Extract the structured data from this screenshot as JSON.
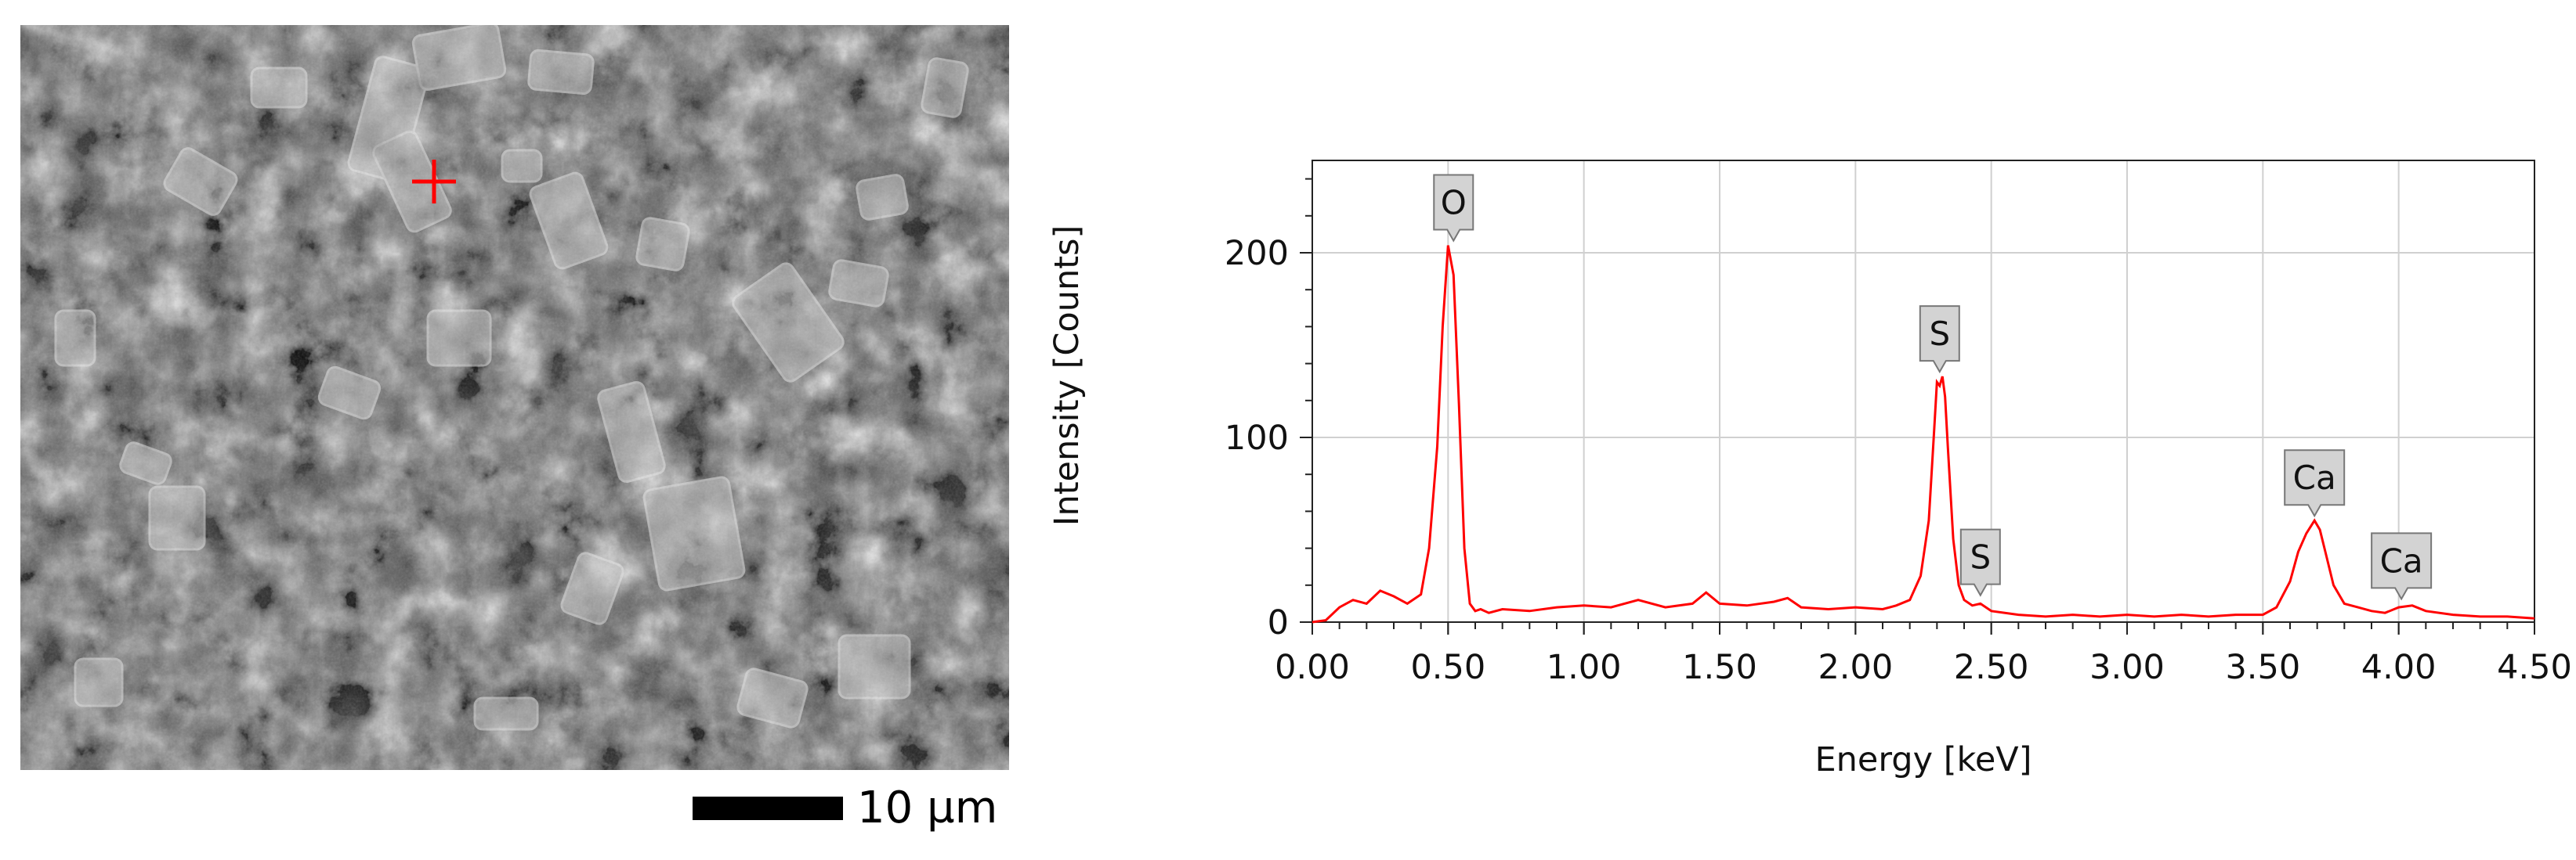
{
  "sem_image": {
    "scale_bar_label": "10 µm",
    "marker_color": "#ff0000"
  },
  "chart_data": {
    "type": "line",
    "title": "",
    "xlabel": "Energy [keV]",
    "ylabel": "Intensity [Counts]",
    "xlim": [
      0,
      4.5
    ],
    "ylim": [
      0,
      250
    ],
    "x_ticks": [
      0,
      0.5,
      1,
      1.5,
      2,
      2.5,
      3,
      3.5,
      4,
      4.5
    ],
    "x_tick_labels": [
      "0.00",
      "0.50",
      "1.00",
      "1.50",
      "2.00",
      "2.50",
      "3.00",
      "3.50",
      "4.00",
      "4.50"
    ],
    "y_ticks": [
      0,
      100,
      200
    ],
    "y_tick_labels": [
      "0",
      "100",
      "200"
    ],
    "grid": true,
    "series_color": "#ff0000",
    "series": [
      {
        "x": [
          0.0,
          0.05,
          0.1,
          0.15,
          0.2,
          0.25,
          0.3,
          0.35,
          0.4,
          0.43,
          0.46,
          0.48,
          0.5,
          0.52,
          0.54,
          0.56,
          0.58,
          0.6,
          0.62,
          0.65,
          0.7,
          0.8,
          0.9,
          1.0,
          1.1,
          1.2,
          1.3,
          1.4,
          1.45,
          1.5,
          1.6,
          1.7,
          1.75,
          1.8,
          1.9,
          2.0,
          2.1,
          2.15,
          2.2,
          2.24,
          2.27,
          2.29,
          2.3,
          2.31,
          2.32,
          2.33,
          2.34,
          2.36,
          2.38,
          2.4,
          2.43,
          2.46,
          2.5,
          2.6,
          2.7,
          2.8,
          2.9,
          3.0,
          3.1,
          3.2,
          3.3,
          3.4,
          3.5,
          3.55,
          3.6,
          3.63,
          3.66,
          3.69,
          3.71,
          3.73,
          3.76,
          3.8,
          3.85,
          3.9,
          3.95,
          4.0,
          4.05,
          4.1,
          4.2,
          4.3,
          4.4,
          4.5
        ],
        "y": [
          0,
          1,
          8,
          12,
          10,
          17,
          14,
          10,
          15,
          40,
          95,
          160,
          204,
          188,
          118,
          40,
          10,
          6,
          7,
          5,
          7,
          6,
          8,
          9,
          8,
          12,
          8,
          10,
          16,
          10,
          9,
          11,
          13,
          8,
          7,
          8,
          7,
          9,
          12,
          25,
          55,
          105,
          130,
          128,
          133,
          122,
          95,
          45,
          20,
          12,
          9,
          10,
          6,
          4,
          3,
          4,
          3,
          4,
          3,
          4,
          3,
          4,
          4,
          8,
          22,
          38,
          48,
          55,
          50,
          38,
          20,
          10,
          8,
          6,
          5,
          8,
          9,
          6,
          4,
          3,
          3,
          2
        ]
      }
    ],
    "peak_labels": [
      {
        "text": "O",
        "x": 0.52,
        "y": 204
      },
      {
        "text": "S",
        "x": 2.31,
        "y": 133
      },
      {
        "text": "S",
        "x": 2.46,
        "y": 12
      },
      {
        "text": "Ca",
        "x": 3.69,
        "y": 55
      },
      {
        "text": "Ca",
        "x": 4.01,
        "y": 10
      }
    ]
  }
}
